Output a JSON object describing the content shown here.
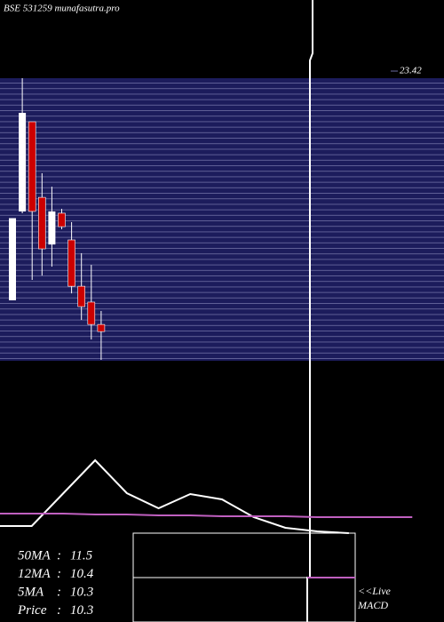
{
  "chart_data": [
    {
      "type": "candlestick",
      "title": "BSE 531259 munafasutra.pro",
      "open": [
        11.84,
        16.33,
        20.86,
        17.04,
        14.66,
        16.24,
        14.89,
        12.55,
        11.75,
        10.62
      ],
      "high": [
        15.99,
        23.06,
        20.86,
        18.26,
        17.58,
        16.46,
        15.79,
        14.22,
        13.63,
        11.3
      ],
      "low": [
        11.84,
        16.24,
        12.87,
        13.09,
        13.54,
        15.43,
        12.19,
        10.85,
        9.86,
        8.83
      ],
      "close": [
        15.99,
        21.31,
        16.33,
        14.44,
        16.33,
        15.56,
        12.55,
        11.52,
        10.62,
        10.26
      ],
      "up_color": "#ffffff",
      "down_color": "#cc0000",
      "ylim": [
        8.83,
        23.42
      ],
      "yticks": [
        23.42
      ]
    },
    {
      "type": "line",
      "title": "MACD",
      "x": [
        0,
        1,
        2,
        3,
        4,
        5,
        6,
        7,
        8,
        9,
        10,
        11,
        12,
        13
      ],
      "series": [
        {
          "color": "#ffffff",
          "values": [
            0.08,
            0.08,
            0.45,
            0.82,
            0.45,
            0.28,
            0.44,
            0.38,
            0.18,
            0.06,
            0.02,
            0.0,
            null,
            null
          ]
        },
        {
          "color": "#c060c0",
          "values": [
            0.22,
            0.22,
            0.22,
            0.21,
            0.21,
            0.2,
            0.2,
            0.19,
            0.19,
            0.19,
            0.18,
            0.18,
            0.18,
            0.18
          ]
        }
      ],
      "xlim": [
        0,
        14
      ],
      "ylim": [
        0,
        1
      ]
    }
  ],
  "summary": [
    {
      "label": "50MA",
      "value": "11.5"
    },
    {
      "label": "12MA",
      "value": "10.4"
    },
    {
      "label": "5MA",
      "value": "10.3"
    },
    {
      "label": "Price",
      "value": "10.3"
    }
  ],
  "live_link": "<<Live"
}
